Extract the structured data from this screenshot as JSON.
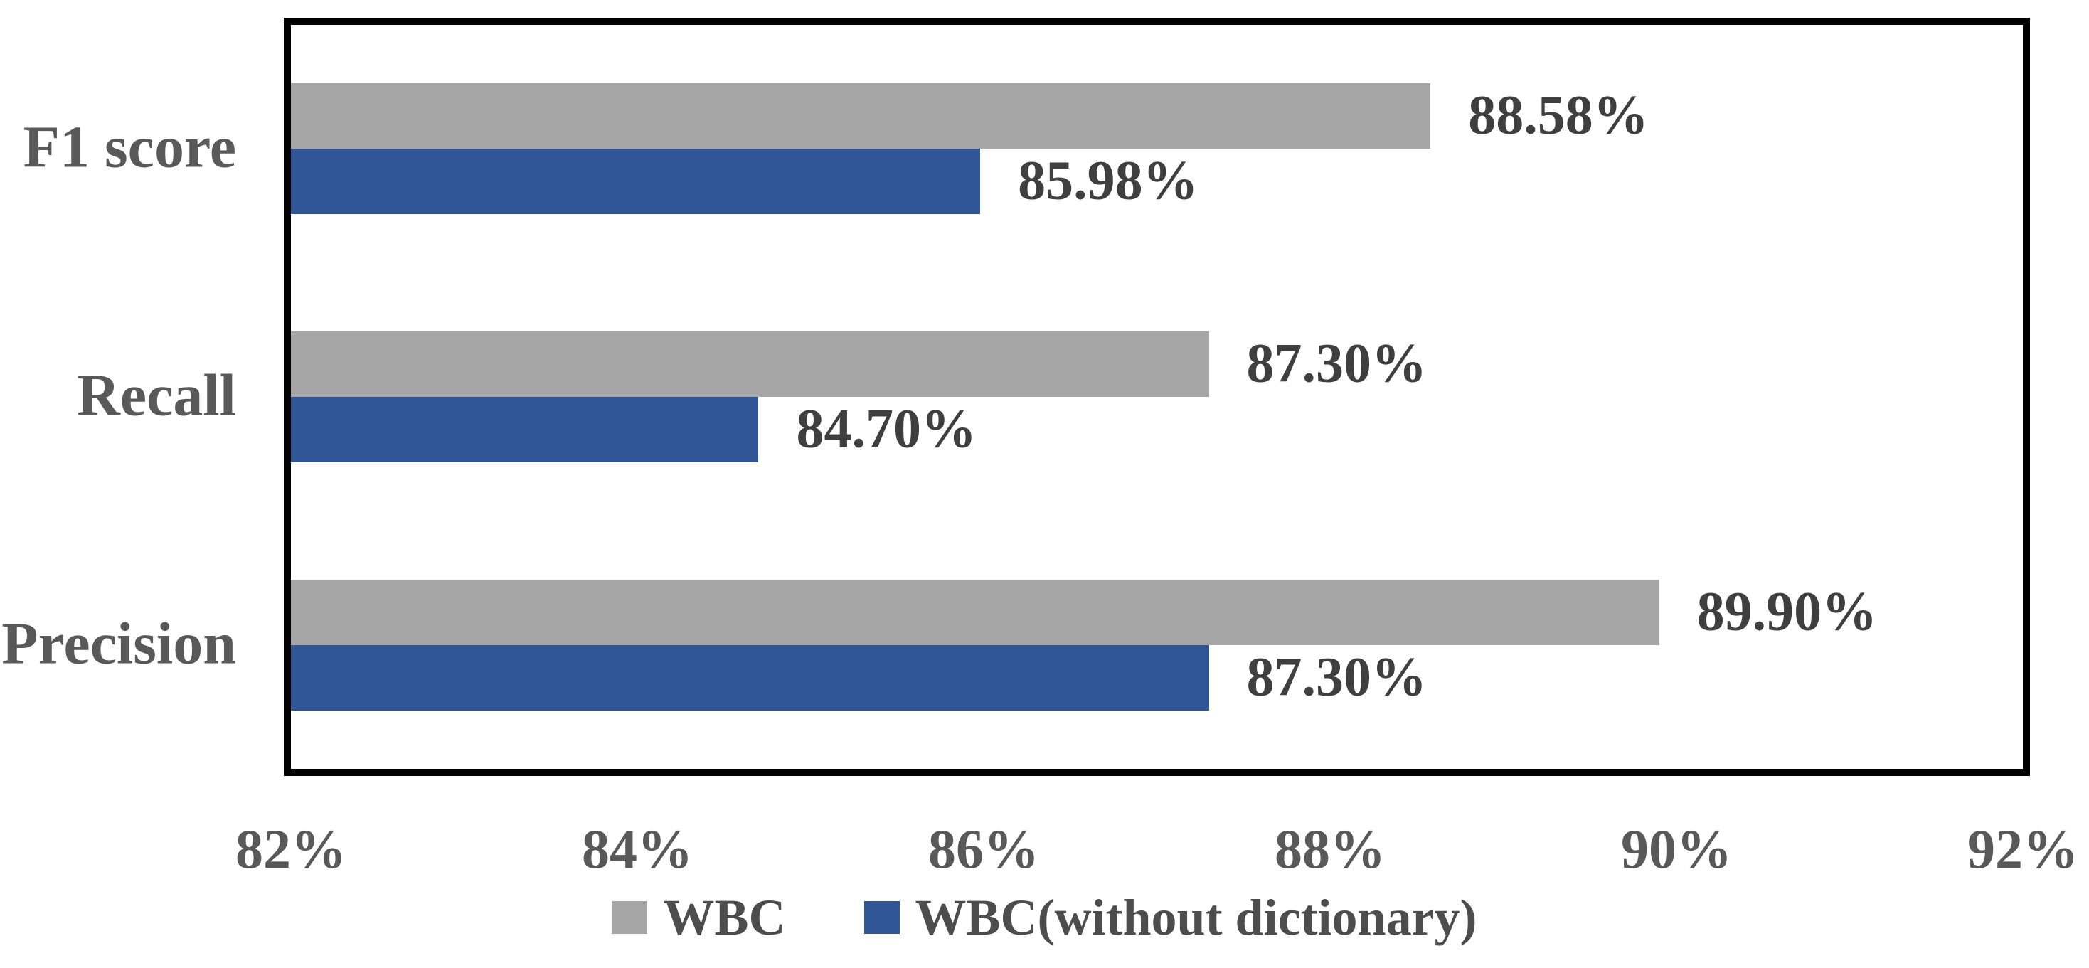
{
  "chart_data": {
    "type": "bar",
    "orientation": "horizontal",
    "title": "",
    "xlabel": "",
    "ylabel": "",
    "categories": [
      "F1 score",
      "Recall",
      "Precision"
    ],
    "series": [
      {
        "name": "WBC",
        "color": "#a6a6a6",
        "values": [
          88.58,
          87.3,
          89.9
        ],
        "value_labels": [
          "88.58%",
          "87.30%",
          "89.90%"
        ]
      },
      {
        "name": "WBC(without dictionary)",
        "color": "#2f5597",
        "values": [
          85.98,
          84.7,
          87.3
        ],
        "value_labels": [
          "85.98%",
          "84.70%",
          "87.30%"
        ]
      }
    ],
    "xlim": [
      82,
      92
    ],
    "x_ticks": [
      {
        "value": 82,
        "label": "82%"
      },
      {
        "value": 84,
        "label": "84%"
      },
      {
        "value": 86,
        "label": "86%"
      },
      {
        "value": 88,
        "label": "88%"
      },
      {
        "value": 90,
        "label": "90%"
      },
      {
        "value": 92,
        "label": "92%"
      }
    ],
    "grid": false,
    "legend_position": "bottom",
    "legend": [
      {
        "label": "WBC",
        "color": "#a6a6a6"
      },
      {
        "label": "WBC(without dictionary)",
        "color": "#2f5597"
      }
    ],
    "colors": {
      "background": "#ffffff",
      "plot_border": "#000000",
      "bar_wbc": "#a6a6a6",
      "bar_wbc_without_dictionary": "#2f5597",
      "value_label_text": "#3f3f3f",
      "category_label_text": "#595959",
      "axis_label_text": "#595959",
      "legend_text": "#4d4d4d"
    }
  }
}
